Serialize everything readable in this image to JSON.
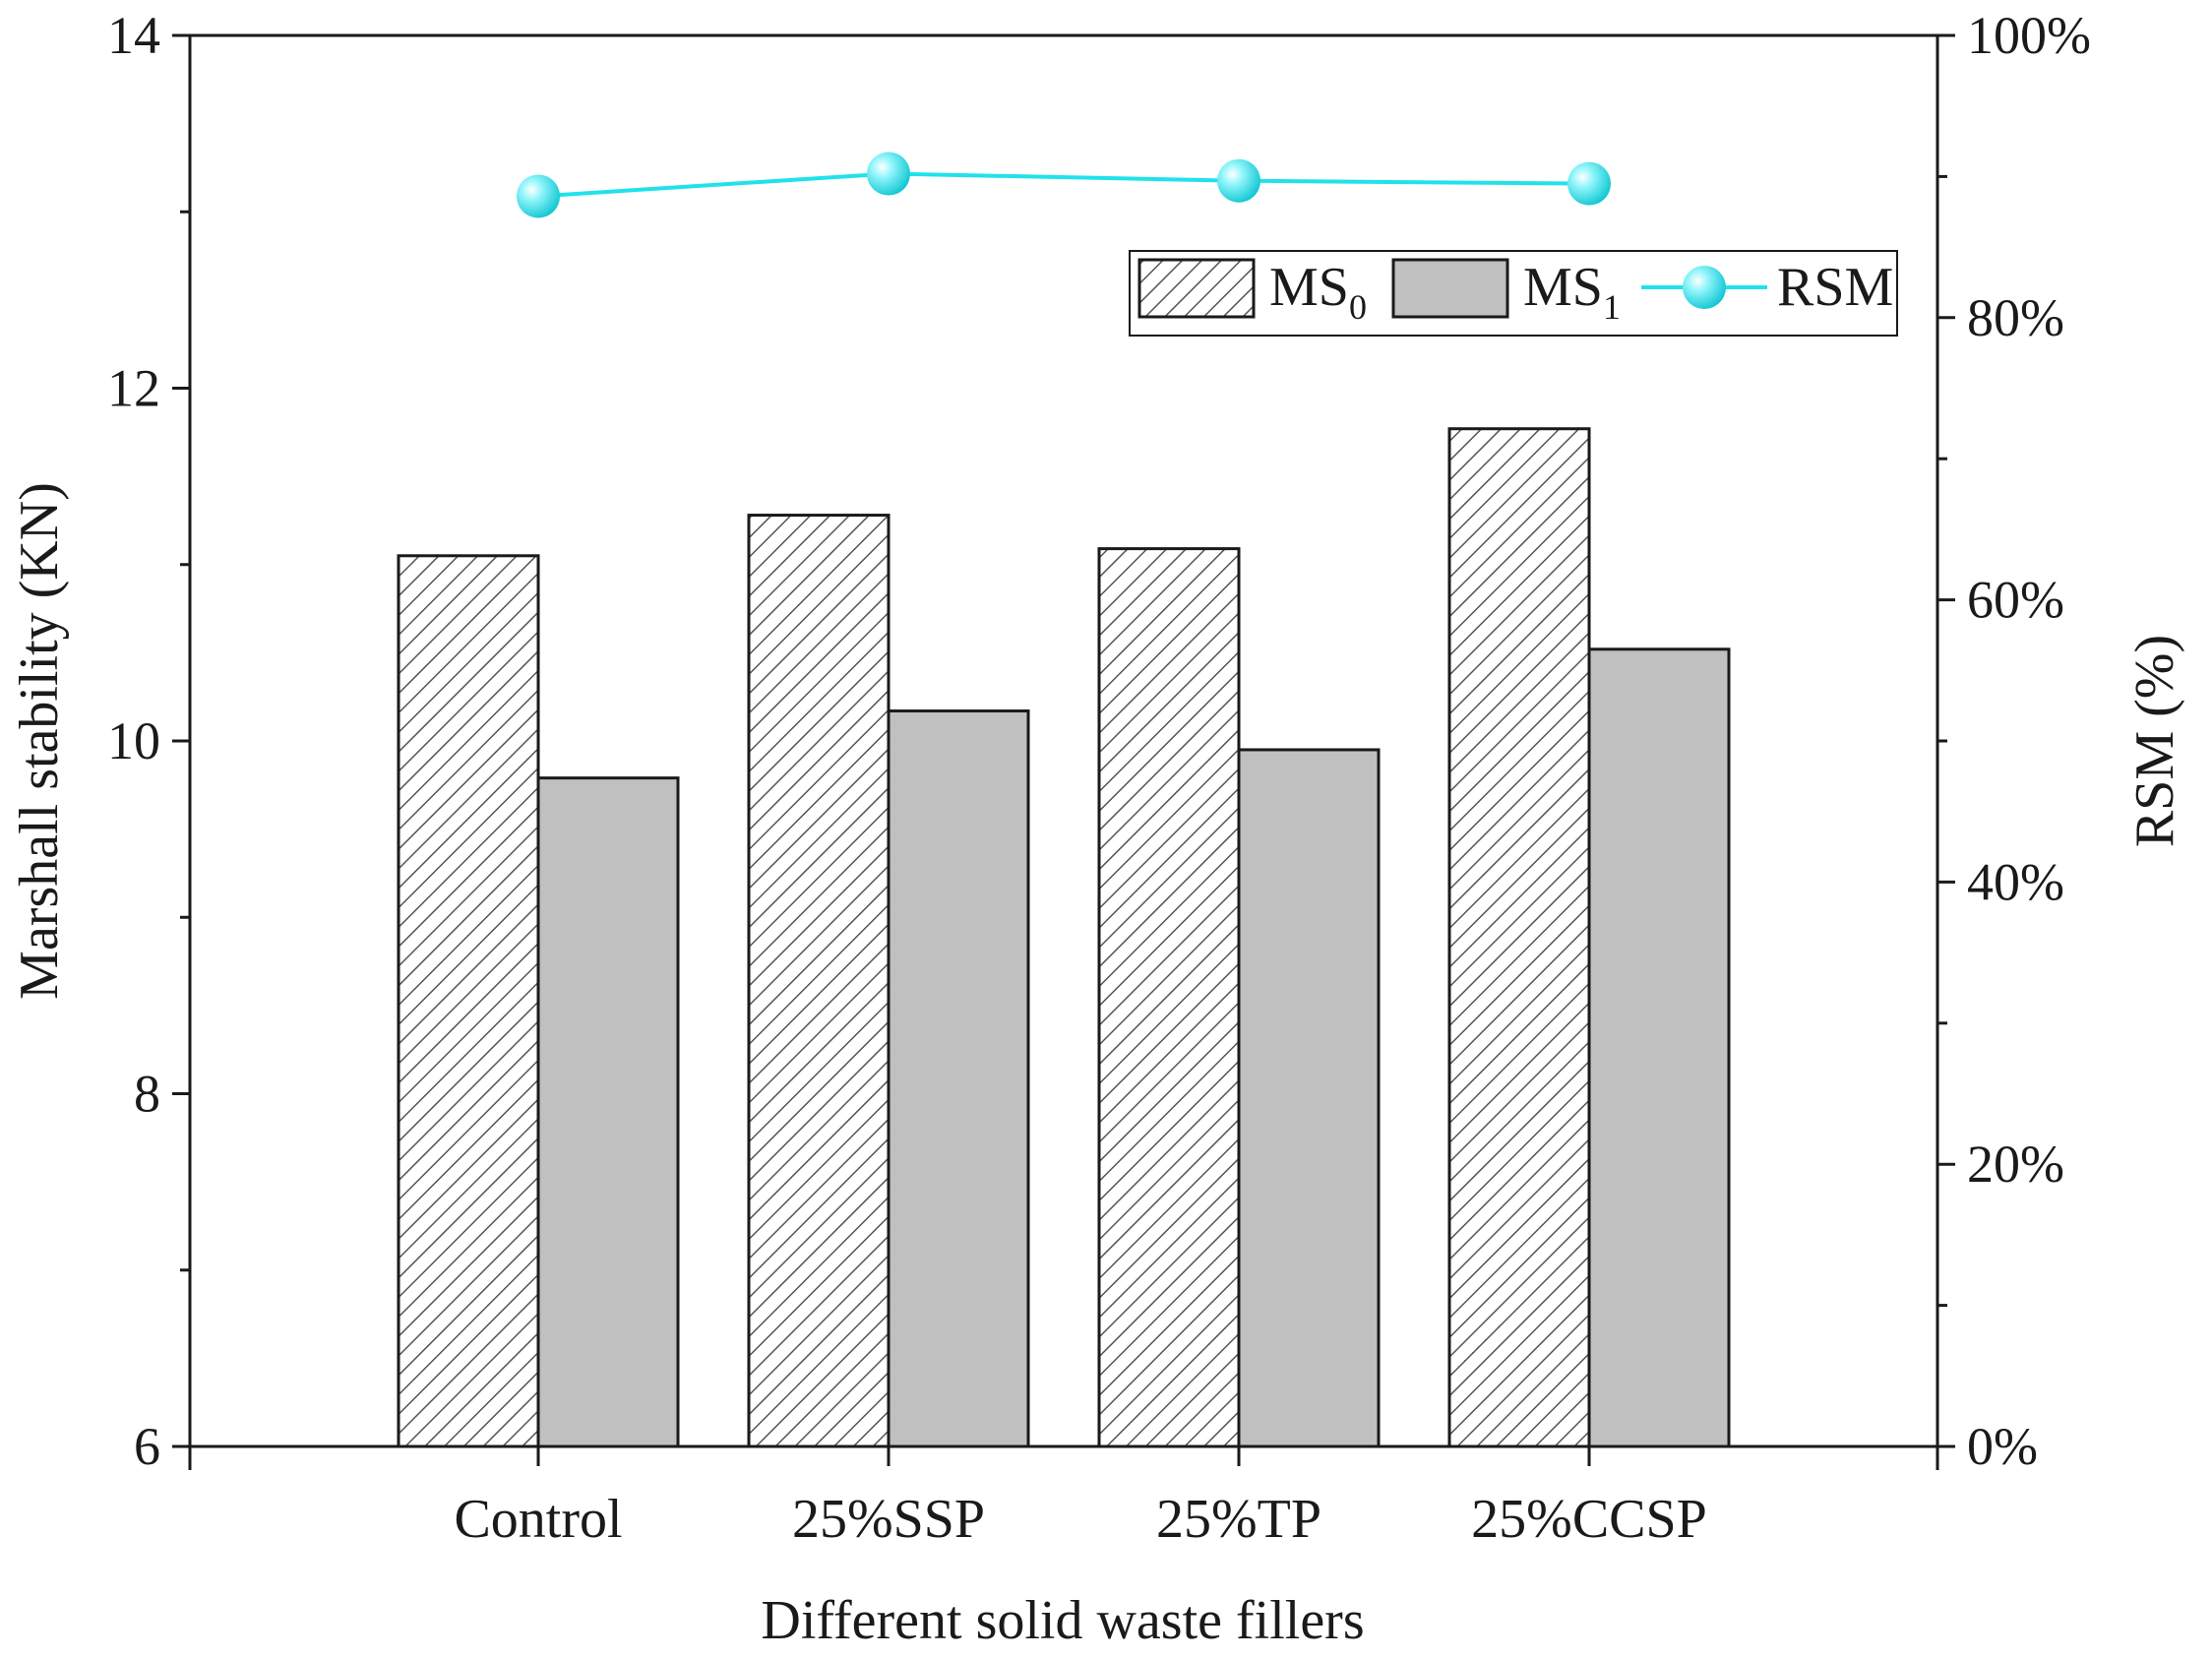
{
  "chart_data": {
    "type": "bar",
    "title": "",
    "xlabel": "Different solid waste fillers",
    "ylabel": "Marshall stability (KN)",
    "y2label": "RSM (%)",
    "ylim": [
      6,
      14
    ],
    "y2lim": [
      0,
      100
    ],
    "yticks": [
      "6",
      "8",
      "10",
      "12",
      "14"
    ],
    "y2ticks": [
      "0%",
      "20%",
      "40%",
      "60%",
      "80%",
      "100%"
    ],
    "categories": [
      "Control",
      "25%SSP",
      "25%TP",
      "25%CCSP"
    ],
    "series": [
      {
        "name": "MS",
        "subscript": "0",
        "kind": "bar",
        "pattern": "hatched",
        "axis": "left",
        "color": "#ffffff",
        "values": [
          11.05,
          11.28,
          11.09,
          11.77
        ]
      },
      {
        "name": "MS",
        "subscript": "1",
        "kind": "bar",
        "pattern": "solid",
        "axis": "left",
        "color": "#c0c0c0",
        "values": [
          9.79,
          10.17,
          9.95,
          10.52
        ]
      },
      {
        "name": "RSM",
        "subscript": "",
        "kind": "line",
        "axis": "right",
        "color": "#1fe2ec",
        "values": [
          88.6,
          90.2,
          89.7,
          89.5
        ]
      }
    ],
    "legend_position": "top-right",
    "grid": false
  }
}
